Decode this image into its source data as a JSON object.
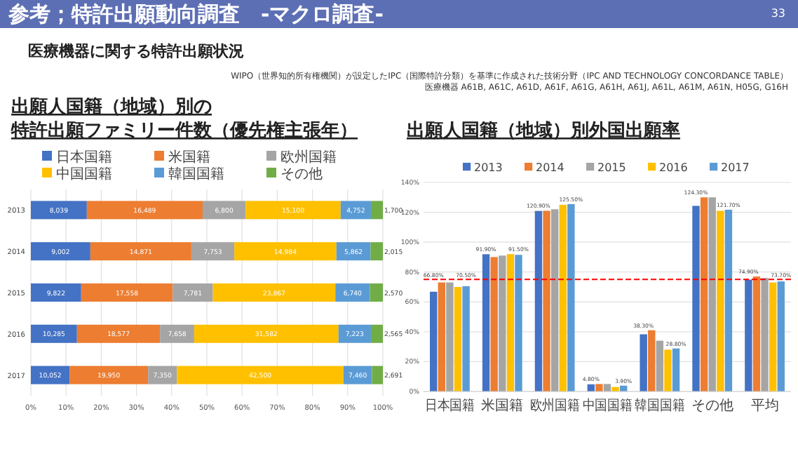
{
  "chart_data": [
    {
      "type": "other",
      "title": "参考；特許出願動向調査　-マクロ調査-",
      "subtitle": "医療機器に関する特許出願状況",
      "annotations": [
        "33",
        "WIPO（世界知的所有権機関）が設定したIPC（国際特許分類）を基準に作成された技術分野（IPC AND TECHNOLOGY CONCORDANCE TABLE）",
        "医療機器 A61B, A61C, A61D, A61F, A61G, A61H, A61J, A61L, A61M, A61N, H05G, G16H"
      ]
    },
    {
      "type": "bar",
      "title": "出願人国籍（地域）別の特許出願ファミリー件数（優先権主張年）",
      "orientation": "horizontal",
      "stacked": true,
      "categories": [
        "2013",
        "2014",
        "2015",
        "2016",
        "2017"
      ],
      "legend": "top",
      "grid": "x",
      "xlim": [
        0,
        100
      ],
      "xticks": [
        {
          "value": 0,
          "label": "0%"
        },
        {
          "value": 10,
          "label": "10%"
        },
        {
          "value": 20,
          "label": "20%"
        },
        {
          "value": 30,
          "label": "30%"
        },
        {
          "value": 40,
          "label": "40%"
        },
        {
          "value": 50,
          "label": "50%"
        },
        {
          "value": 60,
          "label": "60%"
        },
        {
          "value": 70,
          "label": "70%"
        },
        {
          "value": 80,
          "label": "80%"
        },
        {
          "value": 90,
          "label": "90%"
        },
        {
          "value": 100,
          "label": "100%"
        }
      ],
      "series": [
        {
          "name": "日本国籍",
          "color": "#4472c4",
          "values": [
            15.9,
            16.9,
            14.3,
            13.1,
            11.0
          ]
        },
        {
          "name": "米国籍",
          "color": "#ed7d31",
          "values": [
            32.9,
            28.7,
            26.0,
            23.6,
            22.3
          ]
        },
        {
          "name": "欧州国籍",
          "color": "#a5a5a5",
          "values": [
            12.2,
            12.2,
            11.4,
            9.7,
            8.2
          ]
        },
        {
          "name": "中国国籍",
          "color": "#ffc000",
          "values": [
            27.0,
            29.0,
            34.8,
            41.0,
            47.3
          ]
        },
        {
          "name": "韓国国籍",
          "color": "#5b9bd5",
          "values": [
            8.6,
            9.7,
            9.8,
            9.2,
            8.1
          ]
        },
        {
          "name": "その他",
          "color": "#70ad47",
          "values": [
            3.4,
            3.5,
            3.7,
            3.4,
            3.1
          ]
        }
      ],
      "annotations": [
        "8,039",
        "16,489",
        "6,800",
        "15,100",
        "4,752",
        "1,700",
        "9,002",
        "14,871",
        "7,753",
        "14,984",
        "5,862",
        "2,015",
        "9,822",
        "17,558",
        "7,781",
        "23,867",
        "6,740",
        "2,570",
        "10,285",
        "18,577",
        "7,658",
        "31,582",
        "7,223",
        "2,565",
        "10,052",
        "19,950",
        "7,350",
        "42,500",
        "7,460",
        "2,691"
      ]
    },
    {
      "type": "bar",
      "title": "出願人国籍（地域）別外国出願率",
      "categories": [
        "日本国籍",
        "米国籍",
        "欧州国籍",
        "中国国籍",
        "韓国国籍",
        "その他",
        "平均"
      ],
      "legend": "top",
      "grid": "y",
      "ylim": [
        0,
        140
      ],
      "yticks": [
        {
          "value": 0,
          "label": "0%"
        },
        {
          "value": 20,
          "label": "20%"
        },
        {
          "value": 40,
          "label": "40%"
        },
        {
          "value": 60,
          "label": "60%"
        },
        {
          "value": 80,
          "label": "80%"
        },
        {
          "value": 100,
          "label": "100%"
        },
        {
          "value": 120,
          "label": "120%"
        },
        {
          "value": 140,
          "label": "140%"
        }
      ],
      "ref_lines": [
        {
          "axis": "y",
          "value": 75,
          "color": "#ff0000",
          "line_style": "dashed"
        }
      ],
      "series": [
        {
          "name": "2013",
          "color": "#4472c4",
          "values": [
            66.8,
            91.9,
            120.9,
            4.8,
            38.3,
            124.3,
            74.9
          ],
          "value_labels": [
            "66.80%",
            "91.90%",
            "120.90%",
            "4.80%",
            "38.30%",
            "124.30%",
            "74.90%"
          ]
        },
        {
          "name": "2014",
          "color": "#ed7d31",
          "values": [
            73,
            90,
            121,
            5,
            41,
            130,
            77
          ]
        },
        {
          "name": "2015",
          "color": "#a5a5a5",
          "values": [
            73,
            91,
            122,
            5,
            34,
            130,
            76
          ]
        },
        {
          "name": "2016",
          "color": "#ffc000",
          "values": [
            70,
            92,
            125,
            3,
            28,
            121,
            73
          ]
        },
        {
          "name": "2017",
          "color": "#5b9bd5",
          "values": [
            70.5,
            91.5,
            125.5,
            3.9,
            28.8,
            121.7,
            73.7
          ],
          "value_labels": [
            "70.50%",
            "91.50%",
            "125.50%",
            "3.90%",
            "28.80%",
            "121.70%",
            "73.70%"
          ]
        }
      ]
    }
  ]
}
